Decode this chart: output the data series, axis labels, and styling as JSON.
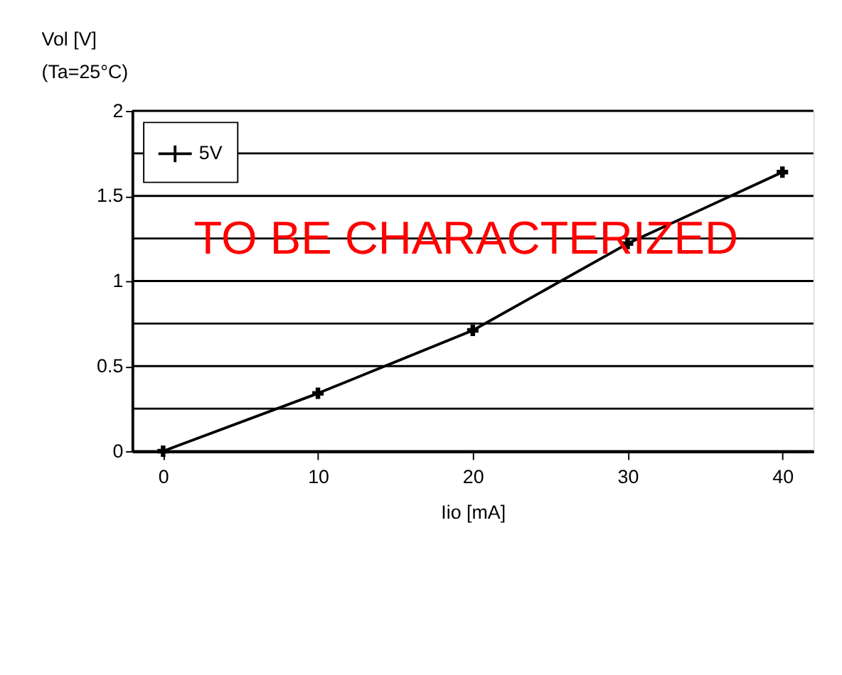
{
  "chart_data": {
    "type": "line",
    "xlabel": "Iio [mA]",
    "ylabel": "Vol [V]",
    "subtitle": "(Ta=25°C)",
    "x": [
      0,
      10,
      20,
      30,
      40
    ],
    "series": [
      {
        "name": "5V",
        "color": "#000000",
        "values": [
          0,
          0.34,
          0.71,
          1.22,
          1.64
        ]
      }
    ],
    "xlim": [
      -2,
      42
    ],
    "xticks": [
      0,
      10,
      20,
      30,
      40
    ],
    "ylim": [
      0,
      2
    ],
    "yticks": [
      0,
      {
        "value": 0.25,
        "label": null
      },
      0.5,
      {
        "value": 0.75,
        "label": null
      },
      1,
      {
        "value": 1.25,
        "label": null
      },
      1.5,
      {
        "value": 1.75,
        "label": null
      },
      2
    ],
    "grid": "y",
    "legend": "top left",
    "marker": "cross",
    "line_style": "solid",
    "annotations": [
      "TO BE CHARACTERIZED"
    ]
  }
}
